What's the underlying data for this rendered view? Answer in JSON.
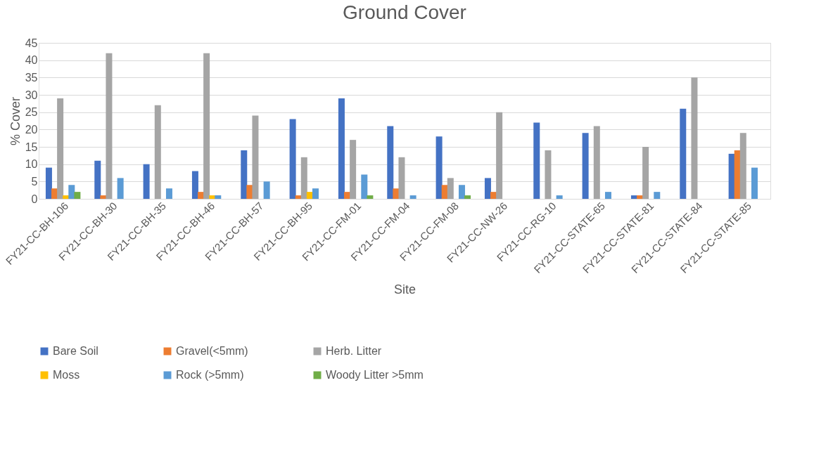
{
  "chart_data": {
    "type": "bar",
    "title": "Ground Cover",
    "xlabel": "Site",
    "ylabel": "% Cover",
    "categories": [
      "FY21-CC-BH-106",
      "FY21-CC-BH-30",
      "FY21-CC-BH-35",
      "FY21-CC-BH-46",
      "FY21-CC-BH-57",
      "FY21-CC-BH-95",
      "FY21-CC-FM-01",
      "FY21-CC-FM-04",
      "FY21-CC-FM-08",
      "FY21-CC-NW-26",
      "FY21-CC-RG-10",
      "FY21-CC-STATE-65",
      "FY21-CC-STATE-81",
      "FY21-CC-STATE-84",
      "FY21-CC-STATE-85"
    ],
    "series": [
      {
        "name": "Bare Soil",
        "color": "#4472c4",
        "values": [
          9,
          11,
          10,
          8,
          14,
          23,
          29,
          21,
          18,
          6,
          22,
          19,
          1,
          26,
          13
        ]
      },
      {
        "name": "Gravel(<5mm)",
        "color": "#ed7d31",
        "values": [
          3,
          1,
          0,
          2,
          4,
          1,
          2,
          3,
          4,
          2,
          0,
          0,
          1,
          0,
          14
        ]
      },
      {
        "name": "Herb. Litter",
        "color": "#a5a5a5",
        "values": [
          29,
          42,
          27,
          42,
          24,
          12,
          17,
          12,
          6,
          25,
          14,
          21,
          15,
          35,
          19
        ]
      },
      {
        "name": "Moss",
        "color": "#ffc000",
        "values": [
          1,
          0,
          0,
          1,
          0,
          2,
          0,
          0,
          0,
          0,
          0,
          0,
          0,
          0,
          0
        ]
      },
      {
        "name": "Rock (>5mm)",
        "color": "#5b9bd5",
        "values": [
          4,
          6,
          3,
          1,
          5,
          3,
          7,
          1,
          4,
          0,
          1,
          2,
          2,
          0,
          9
        ]
      },
      {
        "name": "Woody Litter >5mm",
        "color": "#70ad47",
        "values": [
          2,
          0,
          0,
          0,
          0,
          0,
          1,
          0,
          1,
          0,
          0,
          0,
          0,
          0,
          0
        ]
      }
    ],
    "ylim": [
      0,
      45
    ],
    "yticks": [
      0,
      5,
      10,
      15,
      20,
      25,
      30,
      35,
      40,
      45
    ],
    "grid": "y",
    "legend": "bottom"
  }
}
